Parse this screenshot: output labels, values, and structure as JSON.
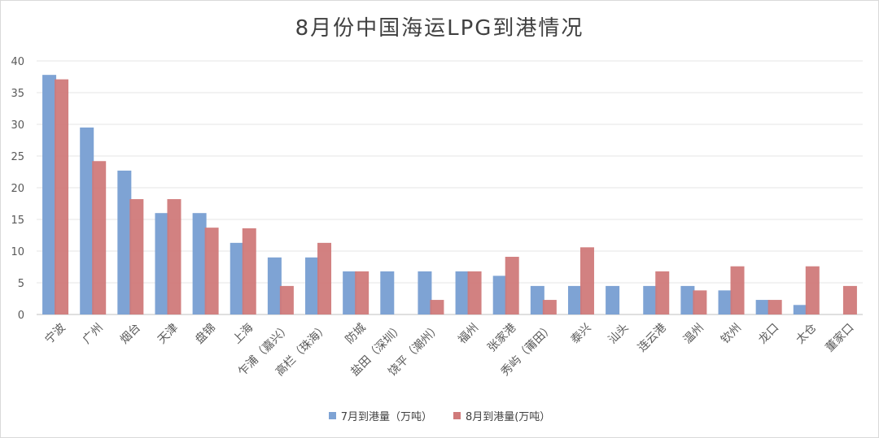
{
  "chart_data": {
    "type": "bar",
    "title": "8月份中国海运LPG到港情况",
    "categories": [
      "宁波",
      "广州",
      "烟台",
      "天津",
      "盘锦",
      "上海",
      "乍浦（嘉兴）",
      "高栏（珠海）",
      "防城",
      "盐田（深圳）",
      "饶平（潮州）",
      "福州",
      "张家港",
      "秀屿（莆田）",
      "泰兴",
      "汕头",
      "连云港",
      "温州",
      "钦州",
      "龙口",
      "太仓",
      "董家口"
    ],
    "series": [
      {
        "name": "7月到港量（万吨）",
        "color": "#7ea3d4",
        "values": [
          37.8,
          29.5,
          22.7,
          16.0,
          16.0,
          11.3,
          9.0,
          9.0,
          6.8,
          6.8,
          6.8,
          6.8,
          6.1,
          4.5,
          4.5,
          4.5,
          4.5,
          4.5,
          3.8,
          2.3,
          1.5,
          0
        ]
      },
      {
        "name": "8月到港量(万吨）",
        "color": "#d07a7a",
        "values": [
          37.1,
          24.2,
          18.2,
          18.2,
          13.7,
          13.6,
          4.5,
          11.3,
          6.8,
          0,
          2.3,
          6.8,
          9.1,
          2.3,
          10.6,
          0,
          6.8,
          3.8,
          7.6,
          2.3,
          7.6,
          4.5
        ]
      }
    ],
    "ylim": [
      0,
      40
    ],
    "yticks": [
      0,
      5,
      10,
      15,
      20,
      25,
      30,
      35,
      40
    ],
    "grid": true,
    "legend": "bottom"
  }
}
